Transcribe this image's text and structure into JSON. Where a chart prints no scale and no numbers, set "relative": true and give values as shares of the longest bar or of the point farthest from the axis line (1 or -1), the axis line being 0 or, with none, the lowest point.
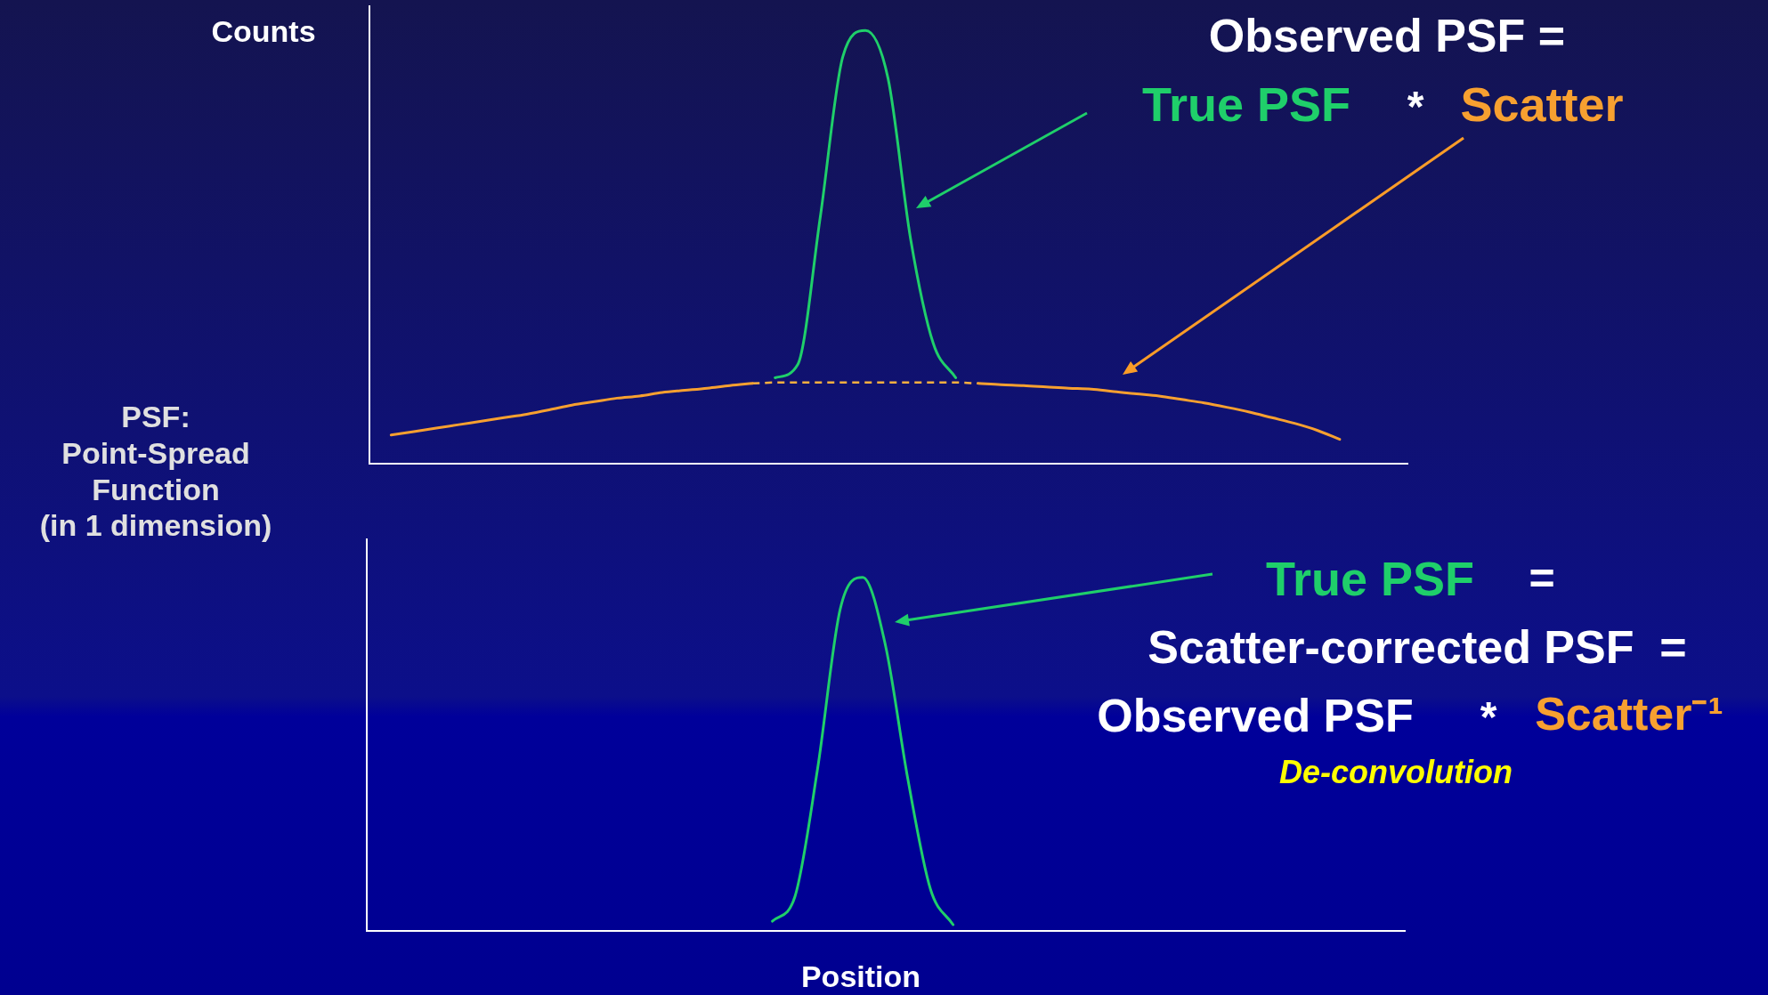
{
  "chart_data": [
    {
      "type": "line",
      "relative": true,
      "ylabel": "Counts",
      "legend": false,
      "grid": false,
      "categories": [
        null,
        null,
        null,
        null,
        null,
        null,
        null,
        null,
        null,
        null,
        null,
        null,
        null,
        null,
        null,
        null,
        null,
        null,
        null,
        null,
        null,
        null,
        null,
        null,
        null,
        null,
        null,
        null,
        null,
        null,
        null,
        null,
        null,
        null,
        null,
        null,
        null,
        null,
        null,
        null,
        null,
        null,
        null,
        null,
        null,
        null,
        null
      ],
      "series": [
        {
          "color": "#f7a030",
          "line_style": "solid",
          "values": [
            null,
            0.068,
            0.076,
            0.084,
            0.092,
            0.1,
            0.108,
            0.116,
            0.126,
            0.137,
            0.145,
            0.153,
            0.158,
            0.166,
            0.171,
            0.176,
            0.182,
            0.187,
            null,
            null,
            null,
            null,
            null,
            null,
            null,
            null,
            null,
            0.187,
            0.184,
            0.182,
            0.179,
            0.176,
            0.174,
            0.168,
            0.163,
            0.158,
            0.15,
            0.142,
            0.132,
            0.121,
            0.108,
            0.095,
            0.079,
            0.058,
            null,
            null,
            null
          ]
        },
        {
          "color": "#fbb040",
          "line_style": "dashed",
          "values": [
            null,
            null,
            null,
            null,
            null,
            null,
            null,
            null,
            null,
            null,
            null,
            null,
            null,
            null,
            null,
            null,
            null,
            0.187,
            0.189,
            0.189,
            0.189,
            0.189,
            0.189,
            0.189,
            0.189,
            0.189,
            0.189,
            0.187,
            null,
            null,
            null,
            null,
            null,
            null,
            null,
            null,
            null,
            null,
            null,
            null,
            null,
            null,
            null,
            null,
            null,
            null,
            null
          ]
        },
        {
          "color": "#1fcf6a",
          "line_style": "solid",
          "values": [
            null,
            null,
            null,
            null,
            null,
            null,
            null,
            null,
            null,
            null,
            null,
            null,
            null,
            null,
            null,
            null,
            null,
            null,
            0.2,
            0.23,
            0.57,
            0.94,
            1,
            0.89,
            0.52,
            0.28,
            0.2,
            null,
            null,
            null,
            null,
            null,
            null,
            null,
            null,
            null,
            null,
            null,
            null,
            null,
            null,
            null,
            null,
            null,
            null,
            null,
            null
          ]
        }
      ],
      "annotations": [
        "PSF:\nPoint-Spread\nFunction\n(in 1 dimension)",
        "Observed PSF =",
        "True PSF",
        "*",
        "Scatter"
      ]
    },
    {
      "type": "line",
      "relative": true,
      "xlabel": "Position",
      "legend": false,
      "grid": false,
      "categories": [
        null,
        null,
        null,
        null,
        null,
        null,
        null,
        null,
        null,
        null,
        null,
        null,
        null,
        null,
        null,
        null,
        null,
        null,
        null,
        null,
        null,
        null,
        null,
        null,
        null,
        null,
        null,
        null,
        null,
        null,
        null,
        null,
        null,
        null,
        null,
        null,
        null,
        null,
        null,
        null,
        null,
        null,
        null,
        null,
        null,
        null,
        null
      ],
      "series": [
        {
          "color": "#1fcf6a",
          "line_style": "solid",
          "values": [
            null,
            null,
            null,
            null,
            null,
            null,
            null,
            null,
            null,
            null,
            null,
            null,
            null,
            null,
            null,
            null,
            null,
            null,
            0.03,
            0.1,
            0.46,
            0.91,
            1,
            0.81,
            0.43,
            0.12,
            0.02,
            null,
            null,
            null,
            null,
            null,
            null,
            null,
            null,
            null,
            null,
            null,
            null,
            null,
            null,
            null,
            null,
            null,
            null,
            null,
            null
          ]
        }
      ],
      "annotations": [
        "True PSF",
        "=",
        "Scatter-corrected PSF  =",
        "Observed PSF",
        "*",
        "Scatter⁻¹",
        "De-convolution"
      ]
    }
  ]
}
